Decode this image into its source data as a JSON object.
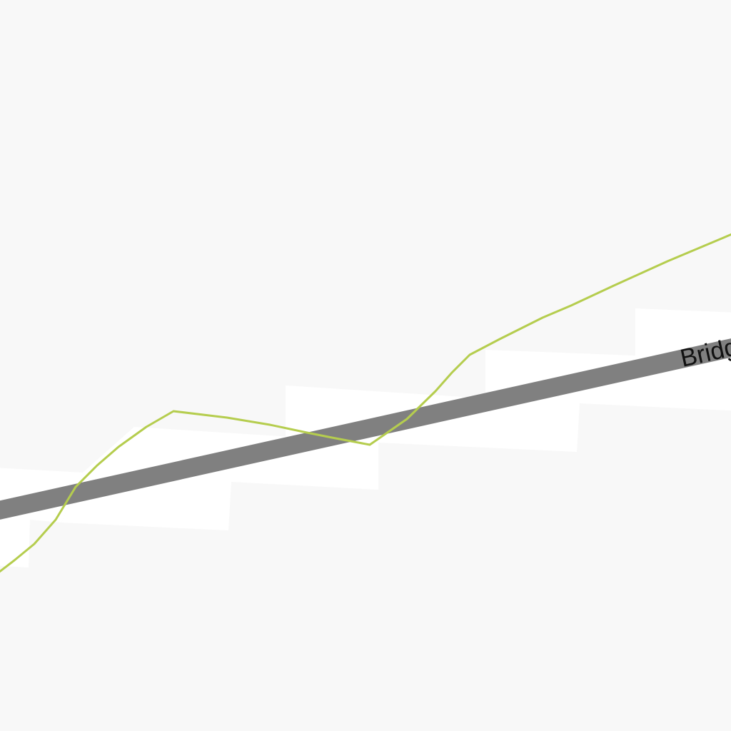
{
  "map": {
    "background_color": "#f8f8f8",
    "road": {
      "label": "Bridge Street",
      "color": "#808080"
    },
    "path": {
      "color": "#b5cd4e"
    },
    "parcels": {
      "color": "#ffffff"
    }
  }
}
